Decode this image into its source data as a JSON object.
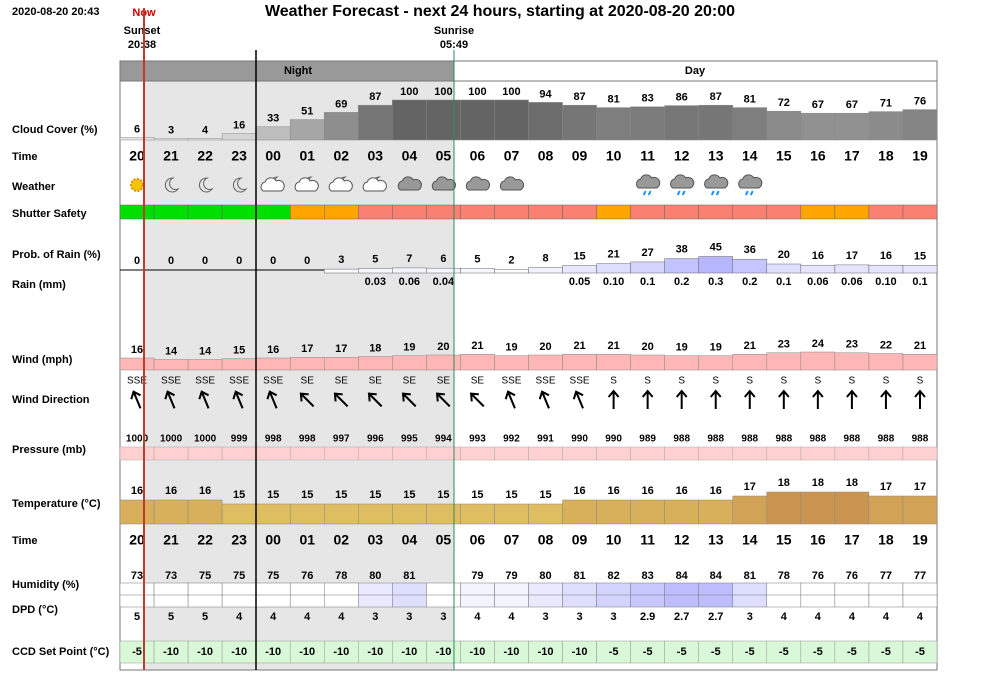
{
  "header": {
    "timestamp": "2020-08-20 20:43",
    "now": "Now",
    "title": "Weather Forecast - next 24 hours, starting at 2020-08-20 20:00",
    "sunset_label": "Sunset",
    "sunset_time": "20:38",
    "sunrise_label": "Sunrise",
    "sunrise_time": "05:49"
  },
  "bands": {
    "night": "Night",
    "day": "Day"
  },
  "hours": [
    "20",
    "21",
    "22",
    "23",
    "00",
    "01",
    "02",
    "03",
    "04",
    "05",
    "06",
    "07",
    "08",
    "09",
    "10",
    "11",
    "12",
    "13",
    "14",
    "15",
    "16",
    "17",
    "18",
    "19"
  ],
  "rows": {
    "cloud_cover": {
      "label": "Cloud Cover (%)",
      "values": [
        6,
        3,
        4,
        16,
        33,
        51,
        69,
        87,
        100,
        100,
        100,
        100,
        94,
        87,
        81,
        83,
        86,
        87,
        81,
        72,
        67,
        67,
        71,
        76
      ]
    },
    "time": {
      "label": "Time"
    },
    "weather": {
      "label": "Weather"
    },
    "shutter_safety": {
      "label": "Shutter Safety",
      "colors": [
        "#00e000",
        "#00e000",
        "#00e000",
        "#00e000",
        "#00e000",
        "#ffa500",
        "#ffa500",
        "#fa8072",
        "#fa8072",
        "#fa8072",
        "#fa8072",
        "#fa8072",
        "#fa8072",
        "#fa8072",
        "#ffa500",
        "#fa8072",
        "#fa8072",
        "#fa8072",
        "#fa8072",
        "#fa8072",
        "#ffa500",
        "#ffa500",
        "#fa8072",
        "#fa8072"
      ]
    },
    "prob_rain": {
      "label": "Prob. of Rain (%)",
      "values": [
        0,
        0,
        0,
        0,
        0,
        0,
        3,
        5,
        7,
        6,
        5,
        2,
        8,
        15,
        21,
        27,
        38,
        45,
        36,
        20,
        16,
        17,
        16,
        15
      ]
    },
    "rain": {
      "label": "Rain (mm)",
      "values": [
        null,
        null,
        null,
        null,
        null,
        null,
        null,
        "0.03",
        "0.06",
        "0.04",
        null,
        null,
        null,
        "0.05",
        "0.10",
        "0.1",
        "0.2",
        "0.3",
        "0.2",
        "0.1",
        "0.06",
        "0.06",
        "0.10",
        "0.1"
      ]
    },
    "wind": {
      "label": "Wind (mph)",
      "values": [
        16,
        14,
        14,
        15,
        16,
        17,
        17,
        18,
        19,
        20,
        21,
        19,
        20,
        21,
        21,
        20,
        19,
        19,
        21,
        23,
        24,
        23,
        22,
        21
      ]
    },
    "wind_direction": {
      "label": "Wind Direction",
      "values": [
        "SSE",
        "SSE",
        "SSE",
        "SSE",
        "SSE",
        "SE",
        "SE",
        "SE",
        "SE",
        "SE",
        "SE",
        "SSE",
        "SSE",
        "SSE",
        "S",
        "S",
        "S",
        "S",
        "S",
        "S",
        "S",
        "S",
        "S",
        "S"
      ]
    },
    "pressure": {
      "label": "Pressure (mb)",
      "values": [
        1000,
        1000,
        1000,
        999,
        998,
        998,
        997,
        996,
        995,
        994,
        993,
        992,
        991,
        990,
        990,
        989,
        988,
        988,
        988,
        988,
        988,
        988,
        988,
        988
      ]
    },
    "temperature": {
      "label": "Temperature (°C)",
      "values": [
        16,
        16,
        16,
        15,
        15,
        15,
        15,
        15,
        15,
        15,
        15,
        15,
        15,
        16,
        16,
        16,
        16,
        16,
        17,
        18,
        18,
        18,
        17,
        17
      ]
    },
    "humidity": {
      "label": "Humidity (%)",
      "values": [
        73,
        73,
        75,
        75,
        75,
        76,
        78,
        80,
        81,
        null,
        79,
        79,
        80,
        81,
        82,
        83,
        84,
        84,
        81,
        78,
        76,
        76,
        77,
        77
      ]
    },
    "dpd": {
      "label": "DPD (°C)",
      "values": [
        5,
        5,
        5,
        4,
        4,
        4,
        4,
        3,
        3,
        3,
        4,
        4,
        3,
        3,
        3,
        2.9,
        2.7,
        2.7,
        3,
        4,
        4,
        4,
        4,
        4
      ]
    },
    "ccd": {
      "label": "CCD Set Point (°C)",
      "values": [
        -5,
        -10,
        -10,
        -10,
        -10,
        -10,
        -10,
        -10,
        -10,
        -10,
        -10,
        -10,
        -10,
        -10,
        -5,
        -5,
        -5,
        -5,
        -5,
        -5,
        -5,
        -5,
        -5,
        -5
      ]
    }
  }
}
